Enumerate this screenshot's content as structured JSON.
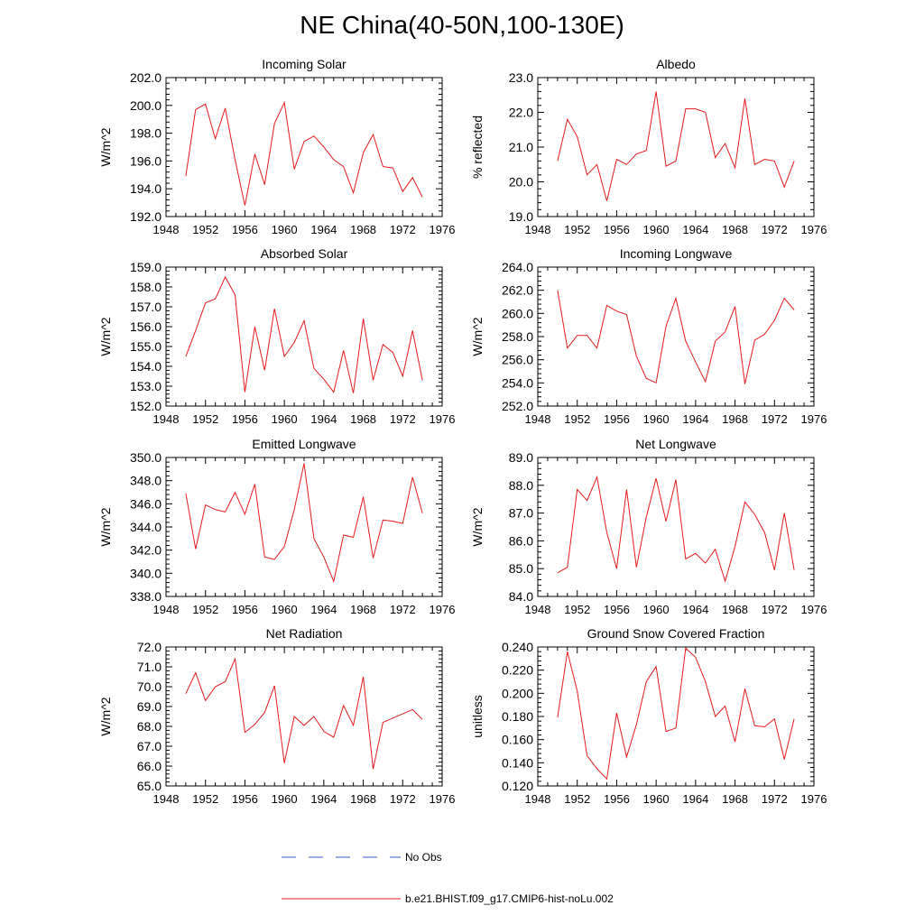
{
  "title": "NE China(40-50N,100-130E)",
  "colors": {
    "model": "#e41a1c",
    "obs": "#3355cc",
    "frame": "#000000"
  },
  "legend": [
    {
      "label": "No Obs",
      "style": "dashed",
      "color": "#3355cc"
    },
    {
      "label": "b.e21.BHIST.f09_g17.CMIP6-hist-noLu.002",
      "style": "solid",
      "color": "#e41a1c"
    }
  ],
  "chart_data": [
    {
      "type": "line",
      "title": "Incoming Solar",
      "ylabel": "W/m^2",
      "xlim": [
        1948,
        1976
      ],
      "ylim": [
        192.0,
        202.0
      ],
      "xticks": [
        1948,
        1952,
        1956,
        1960,
        1964,
        1968,
        1972,
        1976
      ],
      "yticks": [
        "192.0",
        "194.0",
        "196.0",
        "198.0",
        "200.0",
        "202.0"
      ],
      "x": [
        1950,
        1951,
        1952,
        1953,
        1954,
        1955,
        1956,
        1957,
        1958,
        1959,
        1960,
        1961,
        1962,
        1963,
        1964,
        1965,
        1966,
        1967,
        1968,
        1969,
        1970,
        1971,
        1972,
        1973,
        1974
      ],
      "series": [
        {
          "name": "b.e21.BHIST.f09_g17.CMIP6-hist-noLu.002",
          "values": [
            194.9,
            199.7,
            200.1,
            197.6,
            199.8,
            196.1,
            192.8,
            196.5,
            194.3,
            198.7,
            200.2,
            195.4,
            197.4,
            197.8,
            197.0,
            196.1,
            195.6,
            193.7,
            196.6,
            197.9,
            195.6,
            195.5,
            193.8,
            194.8,
            193.4
          ]
        }
      ]
    },
    {
      "type": "line",
      "title": "Albedo",
      "ylabel": "% reflected",
      "xlim": [
        1948,
        1976
      ],
      "ylim": [
        19.0,
        23.0
      ],
      "xticks": [
        1948,
        1952,
        1956,
        1960,
        1964,
        1968,
        1972,
        1976
      ],
      "yticks": [
        "19.0",
        "20.0",
        "21.0",
        "22.0",
        "23.0"
      ],
      "x": [
        1950,
        1951,
        1952,
        1953,
        1954,
        1955,
        1956,
        1957,
        1958,
        1959,
        1960,
        1961,
        1962,
        1963,
        1964,
        1965,
        1966,
        1967,
        1968,
        1969,
        1970,
        1971,
        1972,
        1973,
        1974
      ],
      "series": [
        {
          "name": "b.e21.BHIST.f09_g17.CMIP6-hist-noLu.002",
          "values": [
            20.6,
            21.8,
            21.3,
            20.2,
            20.5,
            19.45,
            20.65,
            20.5,
            20.8,
            20.9,
            22.6,
            20.45,
            20.6,
            22.1,
            22.1,
            22.0,
            20.7,
            21.1,
            20.4,
            22.4,
            20.5,
            20.65,
            20.6,
            19.85,
            20.6
          ]
        }
      ]
    },
    {
      "type": "line",
      "title": "Absorbed Solar",
      "ylabel": "W/m^2",
      "xlim": [
        1948,
        1976
      ],
      "ylim": [
        152.0,
        159.0
      ],
      "xticks": [
        1948,
        1952,
        1956,
        1960,
        1964,
        1968,
        1972,
        1976
      ],
      "yticks": [
        "152.0",
        "153.0",
        "154.0",
        "155.0",
        "156.0",
        "157.0",
        "158.0",
        "159.0"
      ],
      "x": [
        1950,
        1951,
        1952,
        1953,
        1954,
        1955,
        1956,
        1957,
        1958,
        1959,
        1960,
        1961,
        1962,
        1963,
        1964,
        1965,
        1966,
        1967,
        1968,
        1969,
        1970,
        1971,
        1972,
        1973,
        1974
      ],
      "series": [
        {
          "name": "b.e21.BHIST.f09_g17.CMIP6-hist-noLu.002",
          "values": [
            154.5,
            155.8,
            157.2,
            157.4,
            158.5,
            157.6,
            152.7,
            156.0,
            153.8,
            156.9,
            154.5,
            155.2,
            156.3,
            153.9,
            153.35,
            152.7,
            154.8,
            152.65,
            156.4,
            153.3,
            155.1,
            154.7,
            153.5,
            155.8,
            153.3
          ]
        }
      ]
    },
    {
      "type": "line",
      "title": "Incoming Longwave",
      "ylabel": "W/m^2",
      "xlim": [
        1948,
        1976
      ],
      "ylim": [
        252.0,
        264.0
      ],
      "xticks": [
        1948,
        1952,
        1956,
        1960,
        1964,
        1968,
        1972,
        1976
      ],
      "yticks": [
        "252.0",
        "254.0",
        "256.0",
        "258.0",
        "260.0",
        "262.0",
        "264.0"
      ],
      "x": [
        1950,
        1951,
        1952,
        1953,
        1954,
        1955,
        1956,
        1957,
        1958,
        1959,
        1960,
        1961,
        1962,
        1963,
        1964,
        1965,
        1966,
        1967,
        1968,
        1969,
        1970,
        1971,
        1972,
        1973,
        1974
      ],
      "series": [
        {
          "name": "b.e21.BHIST.f09_g17.CMIP6-hist-noLu.002",
          "values": [
            262.0,
            257.0,
            258.1,
            258.1,
            257.0,
            260.7,
            260.2,
            259.9,
            256.3,
            254.4,
            254.0,
            258.9,
            261.3,
            257.6,
            255.8,
            254.1,
            257.6,
            258.4,
            260.6,
            253.9,
            257.7,
            258.2,
            259.4,
            261.3,
            260.3
          ]
        }
      ]
    },
    {
      "type": "line",
      "title": "Emitted Longwave",
      "ylabel": "W/m^2",
      "xlim": [
        1948,
        1976
      ],
      "ylim": [
        338.0,
        350.0
      ],
      "xticks": [
        1948,
        1952,
        1956,
        1960,
        1964,
        1968,
        1972,
        1976
      ],
      "yticks": [
        "338.0",
        "340.0",
        "342.0",
        "344.0",
        "346.0",
        "348.0",
        "350.0"
      ],
      "x": [
        1950,
        1951,
        1952,
        1953,
        1954,
        1955,
        1956,
        1957,
        1958,
        1959,
        1960,
        1961,
        1962,
        1963,
        1964,
        1965,
        1966,
        1967,
        1968,
        1969,
        1970,
        1971,
        1972,
        1973,
        1974
      ],
      "series": [
        {
          "name": "b.e21.BHIST.f09_g17.CMIP6-hist-noLu.002",
          "values": [
            346.9,
            342.1,
            345.9,
            345.5,
            345.3,
            347.0,
            345.1,
            347.7,
            341.4,
            341.2,
            342.3,
            345.5,
            349.5,
            343.0,
            341.4,
            339.3,
            343.3,
            343.1,
            346.6,
            341.3,
            344.6,
            344.5,
            344.3,
            348.3,
            345.2
          ]
        }
      ]
    },
    {
      "type": "line",
      "title": "Net Longwave",
      "ylabel": "W/m^2",
      "xlim": [
        1948,
        1976
      ],
      "ylim": [
        84.0,
        89.0
      ],
      "xticks": [
        1948,
        1952,
        1956,
        1960,
        1964,
        1968,
        1972,
        1976
      ],
      "yticks": [
        "84.0",
        "85.0",
        "86.0",
        "87.0",
        "88.0",
        "89.0"
      ],
      "x": [
        1950,
        1951,
        1952,
        1953,
        1954,
        1955,
        1956,
        1957,
        1958,
        1959,
        1960,
        1961,
        1962,
        1963,
        1964,
        1965,
        1966,
        1967,
        1968,
        1969,
        1970,
        1971,
        1972,
        1973,
        1974
      ],
      "series": [
        {
          "name": "b.e21.BHIST.f09_g17.CMIP6-hist-noLu.002",
          "values": [
            84.85,
            85.05,
            87.85,
            87.45,
            88.3,
            86.3,
            85.0,
            87.85,
            85.05,
            86.85,
            88.25,
            86.7,
            88.2,
            85.35,
            85.55,
            85.2,
            85.7,
            84.55,
            85.8,
            87.4,
            86.95,
            86.3,
            84.95,
            87.0,
            84.95
          ]
        }
      ]
    },
    {
      "type": "line",
      "title": "Net Radiation",
      "ylabel": "W/m^2",
      "xlim": [
        1948,
        1976
      ],
      "ylim": [
        65.0,
        72.0
      ],
      "xticks": [
        1948,
        1952,
        1956,
        1960,
        1964,
        1968,
        1972,
        1976
      ],
      "yticks": [
        "65.0",
        "66.0",
        "67.0",
        "68.0",
        "69.0",
        "70.0",
        "71.0",
        "72.0"
      ],
      "x": [
        1950,
        1951,
        1952,
        1953,
        1954,
        1955,
        1956,
        1957,
        1958,
        1959,
        1960,
        1961,
        1962,
        1963,
        1964,
        1965,
        1966,
        1967,
        1968,
        1969,
        1970,
        1973,
        1974
      ],
      "series": [
        {
          "name": "b.e21.BHIST.f09_g17.CMIP6-hist-noLu.002",
          "values": [
            69.65,
            70.7,
            69.3,
            70.0,
            70.25,
            71.4,
            67.7,
            68.1,
            68.7,
            70.05,
            66.15,
            68.5,
            68.05,
            68.5,
            67.75,
            67.45,
            69.05,
            68.05,
            70.5,
            65.85,
            68.2,
            68.85,
            68.35
          ]
        }
      ]
    },
    {
      "type": "line",
      "title": "Ground Snow Covered Fraction",
      "ylabel": "unitless",
      "xlim": [
        1948,
        1976
      ],
      "ylim": [
        0.12,
        0.24
      ],
      "xticks": [
        1948,
        1952,
        1956,
        1960,
        1964,
        1968,
        1972,
        1976
      ],
      "yticks": [
        "0.120",
        "0.140",
        "0.160",
        "0.180",
        "0.200",
        "0.220",
        "0.240"
      ],
      "x": [
        1950,
        1951,
        1952,
        1953,
        1954,
        1955,
        1956,
        1957,
        1958,
        1959,
        1960,
        1961,
        1962,
        1963,
        1964,
        1965,
        1966,
        1967,
        1968,
        1969,
        1970,
        1971,
        1972,
        1973,
        1974
      ],
      "series": [
        {
          "name": "b.e21.BHIST.f09_g17.CMIP6-hist-noLu.002",
          "values": [
            0.179,
            0.236,
            0.202,
            0.146,
            0.135,
            0.126,
            0.183,
            0.145,
            0.173,
            0.21,
            0.223,
            0.167,
            0.17,
            0.239,
            0.231,
            0.21,
            0.18,
            0.189,
            0.158,
            0.204,
            0.172,
            0.171,
            0.178,
            0.143,
            0.178
          ]
        }
      ]
    }
  ]
}
